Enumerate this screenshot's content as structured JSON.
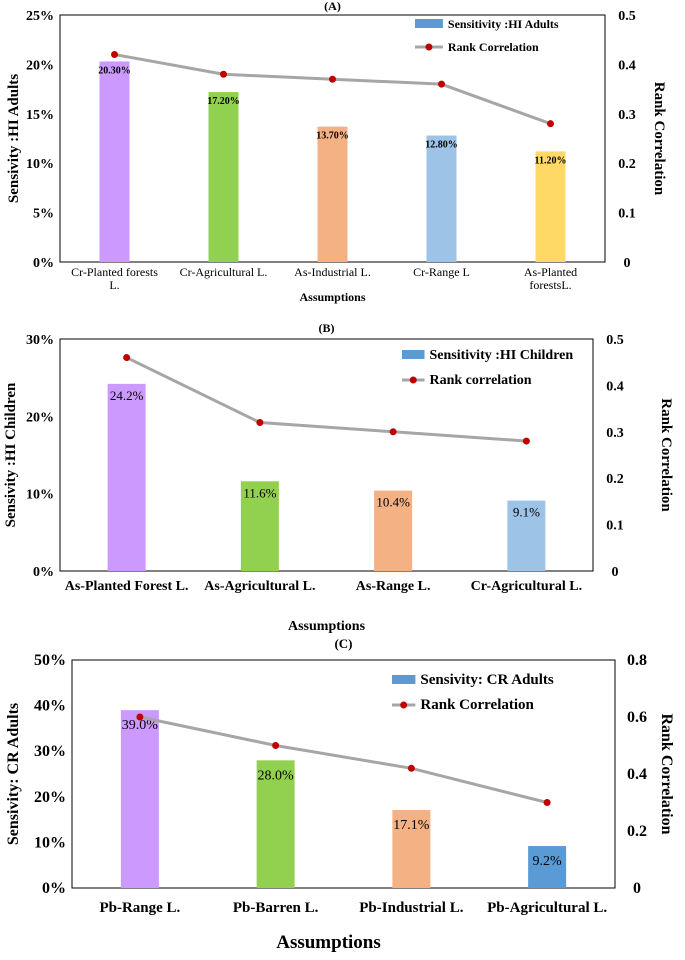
{
  "chart_data": [
    {
      "panel": "(A)",
      "type": "bar",
      "categories": [
        [
          "Cr-Planted forests",
          "L."
        ],
        [
          "Cr-Agricultural L."
        ],
        [
          "As-Industrial L."
        ],
        [
          "Cr-Range L"
        ],
        [
          "As-Planted",
          "forestsL."
        ]
      ],
      "series": [
        {
          "name": "Sensitivity :HI Adults",
          "axis": "left",
          "values": [
            20.3,
            17.2,
            13.7,
            12.8,
            11.2
          ],
          "labels": [
            "20.30%",
            "17.20%",
            "13.70%",
            "12.80%",
            "11.20%"
          ]
        },
        {
          "name": "Rank Correlation",
          "axis": "right",
          "values": [
            0.42,
            0.38,
            0.37,
            0.36,
            0.28
          ]
        }
      ],
      "bar_colors": [
        "#cc99ff",
        "#92d050",
        "#f4b183",
        "#9dc3e6",
        "#ffd966"
      ],
      "legend_swatch": "#5b9bd5",
      "line_color": "#a6a6a6",
      "marker_color": "#c00000",
      "xlabel": "Assumptions",
      "ylabel": "Sensivity :HI Adults",
      "y2label": "Rank Correlation",
      "ylim": [
        0,
        25
      ],
      "y2lim": [
        0,
        0.5
      ],
      "yticks": [
        "0%",
        "5%",
        "10%",
        "15%",
        "20%",
        "25%"
      ],
      "y2ticks": [
        "0",
        "0.1",
        "0.2",
        "0.3",
        "0.4",
        "0.5"
      ],
      "legend_position": "top-right"
    },
    {
      "panel": "(B)",
      "type": "bar",
      "categories": [
        [
          "As-Planted Forest L."
        ],
        [
          "As-Agricultural L."
        ],
        [
          "As-Range L."
        ],
        [
          "Cr-Agricultural L."
        ]
      ],
      "series": [
        {
          "name": "Sensitivity :HI Children",
          "axis": "left",
          "values": [
            24.2,
            11.6,
            10.4,
            9.1
          ],
          "labels": [
            "24.2%",
            "11.6%",
            "10.4%",
            "9.1%"
          ]
        },
        {
          "name": "Rank correlation",
          "axis": "right",
          "values": [
            0.46,
            0.32,
            0.3,
            0.28
          ]
        }
      ],
      "bar_colors": [
        "#cc99ff",
        "#92d050",
        "#f4b183",
        "#9dc3e6"
      ],
      "legend_swatch": "#5b9bd5",
      "line_color": "#a6a6a6",
      "marker_color": "#c00000",
      "xlabel": "Assumptions",
      "ylabel": "Sensivity :HI Children",
      "y2label": "Rank Correlation",
      "ylim": [
        0,
        30
      ],
      "y2lim": [
        0,
        0.5
      ],
      "yticks": [
        "0%",
        "10%",
        "20%",
        "30%"
      ],
      "y2ticks": [
        "0",
        "0.1",
        "0.2",
        "0.3",
        "0.4",
        "0.5"
      ],
      "legend_position": "top-right"
    },
    {
      "panel": "(C)",
      "type": "bar",
      "categories": [
        [
          "Pb-Range L."
        ],
        [
          "Pb-Barren L."
        ],
        [
          "Pb-Industrial L."
        ],
        [
          "Pb-Agricultural L."
        ]
      ],
      "series": [
        {
          "name": "Sensivity: CR Adults",
          "axis": "left",
          "values": [
            39.0,
            28.0,
            17.1,
            9.2
          ],
          "labels": [
            "39.0%",
            "28.0%",
            "17.1%",
            "9.2%"
          ]
        },
        {
          "name": "Rank Correlation",
          "axis": "right",
          "values": [
            0.6,
            0.5,
            0.42,
            0.3
          ]
        }
      ],
      "bar_colors": [
        "#cc99ff",
        "#92d050",
        "#f4b183",
        "#5b9bd5"
      ],
      "legend_swatch": "#5b9bd5",
      "line_color": "#a6a6a6",
      "marker_color": "#c00000",
      "xlabel": "Assumptions",
      "ylabel": "Sensivity: CR Adults",
      "y2label": "Rank Correlation",
      "ylim": [
        0,
        50
      ],
      "y2lim": [
        0,
        0.8
      ],
      "yticks": [
        "0%",
        "10%",
        "20%",
        "30%",
        "40%",
        "50%"
      ],
      "y2ticks": [
        "0",
        "0.2",
        "0.4",
        "0.6",
        "0.8"
      ],
      "legend_position": "top-right"
    }
  ]
}
